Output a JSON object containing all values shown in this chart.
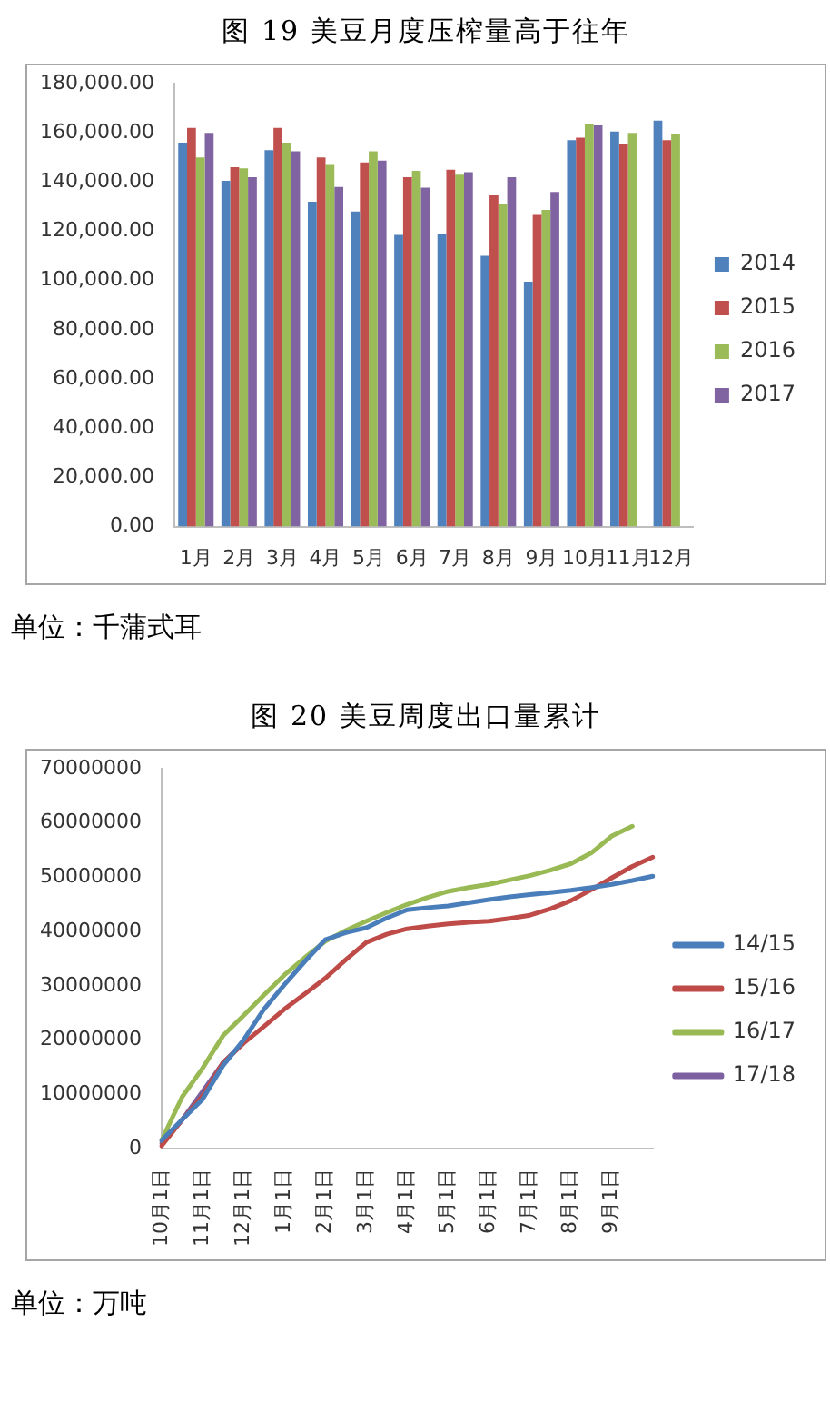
{
  "chart_data": [
    {
      "type": "bar",
      "title": "图 19 美豆月度压榨量高于往年",
      "categories": [
        "1月",
        "2月",
        "3月",
        "4月",
        "5月",
        "6月",
        "7月",
        "8月",
        "9月",
        "10月",
        "11月",
        "12月"
      ],
      "series": [
        {
          "name": "2014",
          "color": "#4f81bd",
          "values": [
            156000,
            140500,
            153000,
            132000,
            128000,
            118500,
            119000,
            110000,
            99500,
            157000,
            160500,
            165000
          ]
        },
        {
          "name": "2015",
          "color": "#c0504d",
          "values": [
            162000,
            146000,
            162000,
            150000,
            148000,
            142000,
            145000,
            134600,
            126700,
            158000,
            155600,
            157000
          ]
        },
        {
          "name": "2016",
          "color": "#9bbb59",
          "values": [
            150000,
            145600,
            156000,
            147000,
            152500,
            144600,
            143000,
            131000,
            128700,
            163600,
            160000,
            159500
          ]
        },
        {
          "name": "2017",
          "color": "#8064a2",
          "values": [
            160000,
            142000,
            152500,
            138000,
            148700,
            137700,
            144000,
            142000,
            136000,
            163000,
            null,
            null
          ]
        }
      ],
      "ylim": [
        0,
        180000
      ],
      "yticks": [
        {
          "value": 0,
          "label": "0.00"
        },
        {
          "value": 20000,
          "label": "20,000.00"
        },
        {
          "value": 40000,
          "label": "40,000.00"
        },
        {
          "value": 60000,
          "label": "60,000.00"
        },
        {
          "value": 80000,
          "label": "80,000.00"
        },
        {
          "value": 100000,
          "label": "100,000.00"
        },
        {
          "value": 120000,
          "label": "120,000.00"
        },
        {
          "value": 140000,
          "label": "140,000.00"
        },
        {
          "value": 160000,
          "label": "160,000.00"
        },
        {
          "value": 180000,
          "label": "180,000.00"
        }
      ],
      "legend": "right",
      "annotations": [
        "单位：千蒲式耳"
      ]
    },
    {
      "type": "line",
      "title": "图 20 美豆周度出口量累计",
      "marker": "none",
      "line_style": "solid",
      "categories": [
        "10月1日",
        null,
        "11月1日",
        null,
        "12月1日",
        null,
        "1月1日",
        null,
        "2月1日",
        null,
        "3月1日",
        null,
        "4月1日",
        null,
        "5月1日",
        null,
        "6月1日",
        null,
        "7月1日",
        null,
        "8月1日",
        null,
        "9月1日",
        null,
        null
      ],
      "series": [
        {
          "name": "14/15",
          "color": "#4a7ebb",
          "values": [
            1500000,
            5300000,
            9100000,
            15300000,
            20000000,
            25700000,
            30200000,
            34500000,
            38500000,
            39800000,
            40700000,
            42500000,
            44000000,
            44400000,
            44700000,
            45300000,
            45900000,
            46400000,
            46800000,
            47200000,
            47600000,
            48100000,
            48700000,
            49400000,
            50200000
          ]
        },
        {
          "name": "15/16",
          "color": "#be4b48",
          "values": [
            500000,
            5300000,
            9700000,
            15800000,
            19400000,
            22500000,
            25700000,
            28500000,
            31400000,
            34800000,
            38000000,
            39500000,
            40500000,
            41000000,
            41400000,
            41700000,
            41900000,
            42400000,
            43000000,
            44200000,
            45700000,
            47700000,
            49900000,
            52000000,
            53700000
          ]
        },
        {
          "name": "16/17",
          "color": "#98b954",
          "values": [
            1500000,
            9500000,
            14800000,
            20800000,
            24500000,
            28300000,
            32000000,
            35200000,
            38200000,
            40200000,
            41900000,
            43500000,
            45000000,
            46300000,
            47400000,
            48100000,
            48700000,
            49500000,
            50300000,
            51300000,
            52500000,
            54500000,
            57600000,
            59400000,
            null
          ]
        },
        {
          "name": "17/18",
          "color": "#7d60a0",
          "values": [
            1000000,
            5300000,
            10500000,
            15800000,
            19500000,
            null,
            null,
            null,
            null,
            null,
            null,
            null,
            null,
            null,
            null,
            null,
            null,
            null,
            null,
            null,
            null,
            null,
            null,
            null,
            null
          ]
        }
      ],
      "ylim": [
        0,
        70000000
      ],
      "yticks": [
        0,
        10000000,
        20000000,
        30000000,
        40000000,
        50000000,
        60000000,
        70000000
      ],
      "legend": "right",
      "annotations": [
        "单位：万吨"
      ]
    }
  ]
}
